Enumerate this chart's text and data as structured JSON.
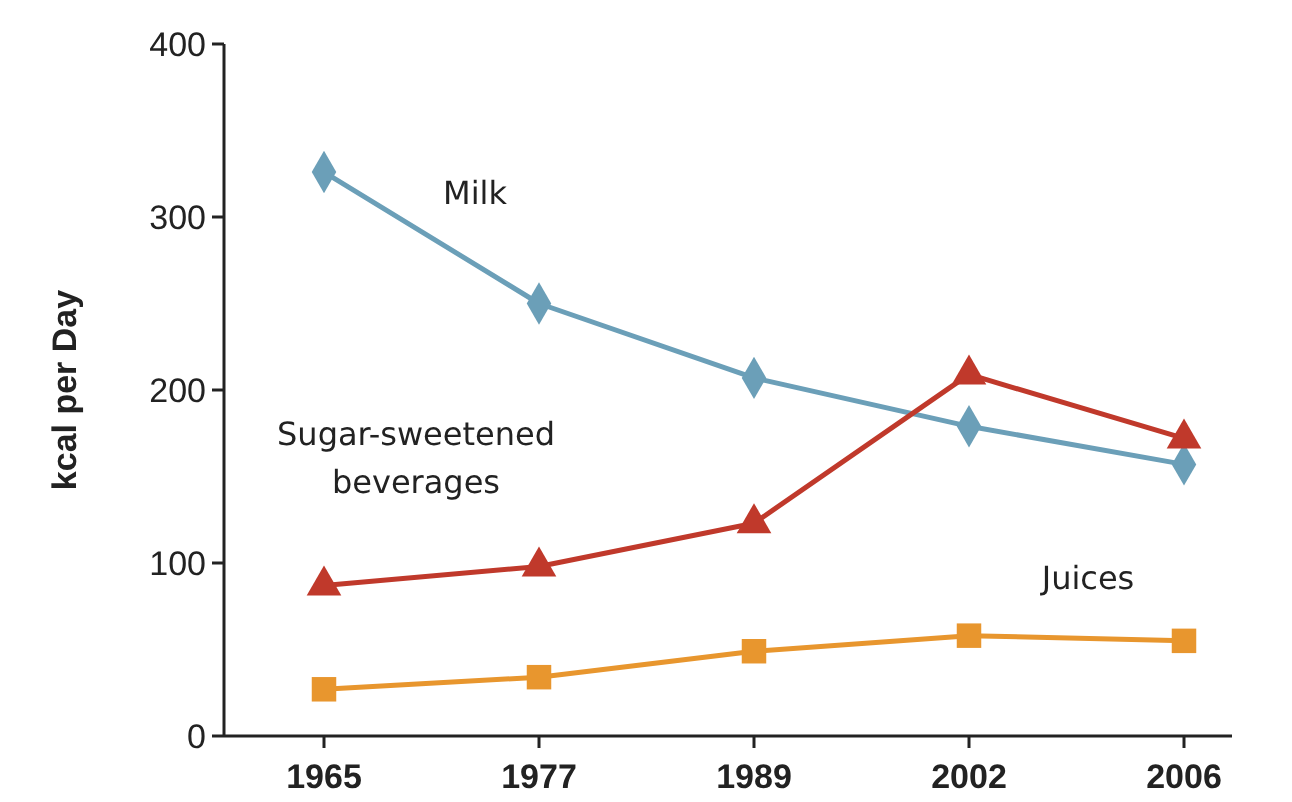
{
  "chart_data": {
    "type": "line",
    "ylabel": "kcal per Day",
    "categories": [
      "1965",
      "1977",
      "1989",
      "2002",
      "2006"
    ],
    "ylim": [
      0,
      400
    ],
    "yticks": [
      0,
      100,
      200,
      300,
      400
    ],
    "grid": false,
    "line_style": "solid",
    "series": [
      {
        "name": "Milk",
        "color": "#6b9fb8",
        "marker": "diamond",
        "values": [
          326,
          250,
          207,
          179,
          157
        ]
      },
      {
        "name": "Sugar-sweetened beverages",
        "color": "#c0392b",
        "marker": "triangle",
        "values": [
          87,
          98,
          123,
          209,
          172
        ]
      },
      {
        "name": "Juices",
        "color": "#e8962e",
        "marker": "square",
        "values": [
          27,
          34,
          49,
          58,
          55
        ]
      }
    ]
  }
}
